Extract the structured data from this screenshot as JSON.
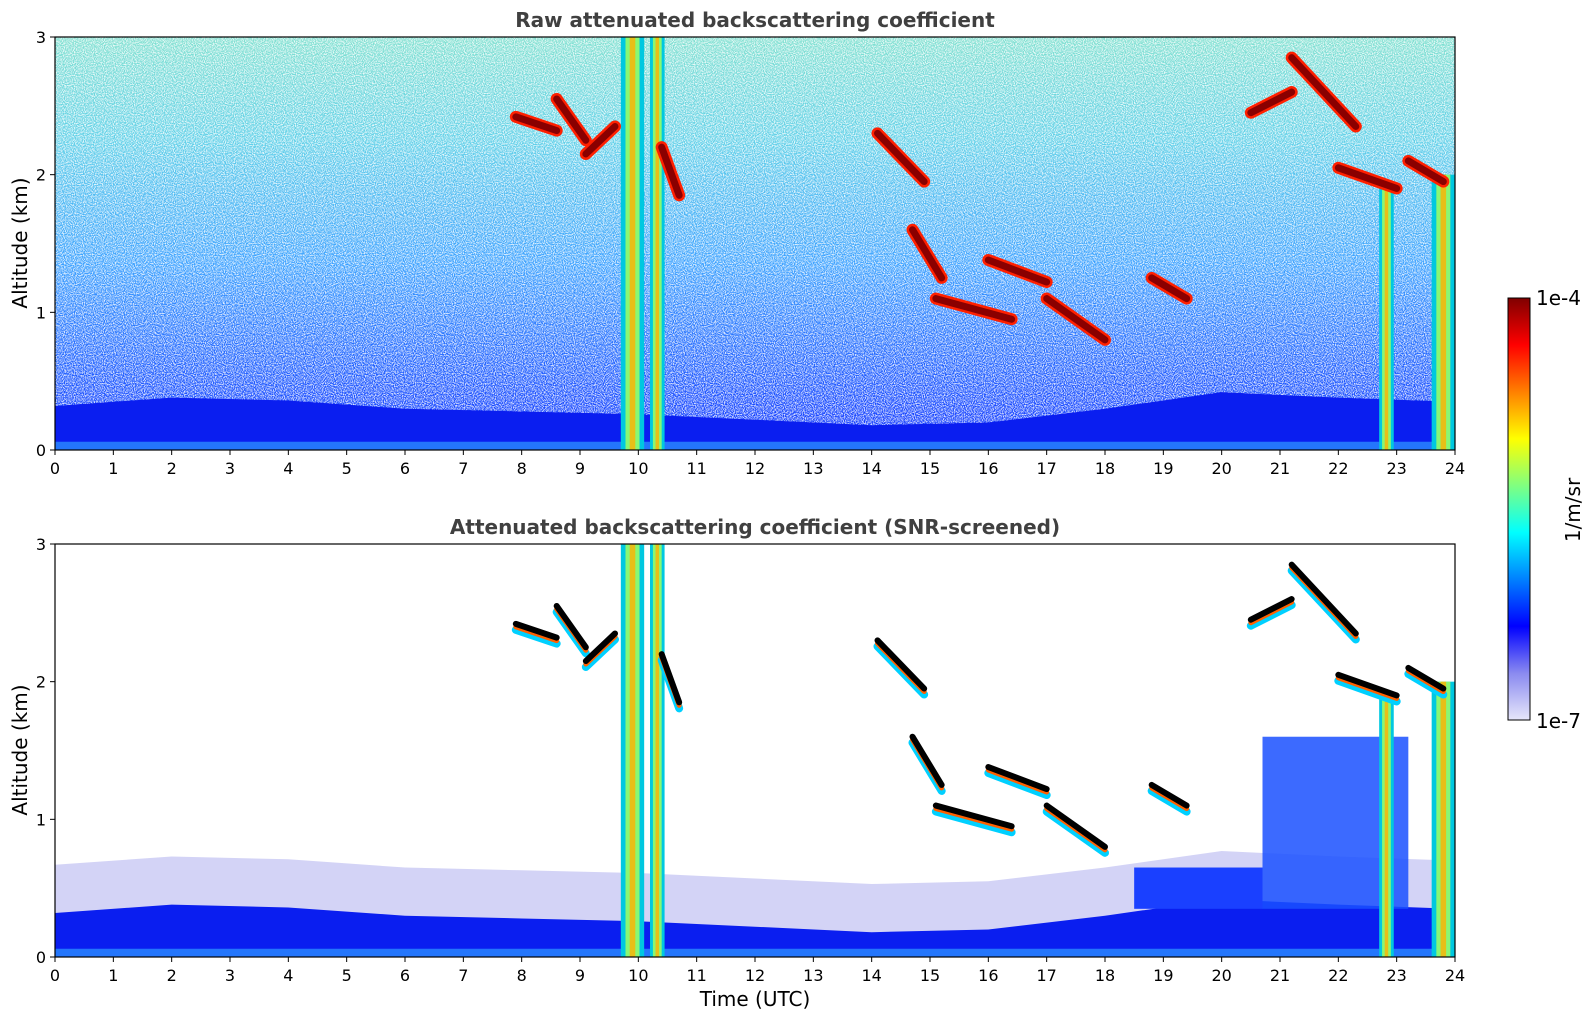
{
  "chart_data": [
    {
      "type": "heatmap",
      "title": "Raw attenuated backscattering coefficient",
      "xlabel": "",
      "ylabel": "Altitude (km)",
      "xlim": [
        0,
        24
      ],
      "ylim": [
        0,
        3
      ],
      "xticks": [
        "0",
        "1",
        "2",
        "3",
        "4",
        "5",
        "6",
        "7",
        "8",
        "9",
        "10",
        "11",
        "12",
        "13",
        "14",
        "15",
        "16",
        "17",
        "18",
        "19",
        "20",
        "21",
        "22",
        "23",
        "24"
      ],
      "yticks": [
        "0",
        "1",
        "2",
        "3"
      ],
      "screened": false,
      "boundary_layer": [
        {
          "t": 0,
          "top": 0.32
        },
        {
          "t": 2,
          "top": 0.38
        },
        {
          "t": 4,
          "top": 0.36
        },
        {
          "t": 6,
          "top": 0.3
        },
        {
          "t": 8,
          "top": 0.28
        },
        {
          "t": 10,
          "top": 0.26
        },
        {
          "t": 12,
          "top": 0.22
        },
        {
          "t": 14,
          "top": 0.18
        },
        {
          "t": 16,
          "top": 0.2
        },
        {
          "t": 18,
          "top": 0.3
        },
        {
          "t": 20,
          "top": 0.42
        },
        {
          "t": 22,
          "top": 0.38
        },
        {
          "t": 24,
          "top": 0.35
        }
      ],
      "cloud_layers": [
        {
          "t": [
            7.9,
            8.6
          ],
          "alt": [
            2.42,
            2.32
          ]
        },
        {
          "t": [
            8.6,
            9.1
          ],
          "alt": [
            2.55,
            2.25
          ]
        },
        {
          "t": [
            9.1,
            9.6
          ],
          "alt": [
            2.15,
            2.35
          ]
        },
        {
          "t": [
            10.4,
            10.7
          ],
          "alt": [
            2.2,
            1.85
          ]
        },
        {
          "t": [
            14.1,
            14.9
          ],
          "alt": [
            2.3,
            1.95
          ]
        },
        {
          "t": [
            14.7,
            15.2
          ],
          "alt": [
            1.6,
            1.25
          ]
        },
        {
          "t": [
            15.1,
            16.4
          ],
          "alt": [
            1.1,
            0.95
          ]
        },
        {
          "t": [
            16.0,
            17.0
          ],
          "alt": [
            1.38,
            1.22
          ]
        },
        {
          "t": [
            17.0,
            18.0
          ],
          "alt": [
            1.1,
            0.8
          ]
        },
        {
          "t": [
            18.8,
            19.4
          ],
          "alt": [
            1.25,
            1.1
          ]
        },
        {
          "t": [
            20.5,
            21.2
          ],
          "alt": [
            2.45,
            2.6
          ]
        },
        {
          "t": [
            21.2,
            22.3
          ],
          "alt": [
            2.85,
            2.35
          ]
        },
        {
          "t": [
            22.0,
            23.0
          ],
          "alt": [
            2.05,
            1.9
          ]
        },
        {
          "t": [
            23.2,
            23.8
          ],
          "alt": [
            2.1,
            1.95
          ]
        }
      ],
      "precipitation_columns": [
        {
          "t": [
            9.7,
            10.1
          ],
          "top": 3.0
        },
        {
          "t": [
            10.2,
            10.45
          ],
          "top": 3.0
        },
        {
          "t": [
            22.7,
            22.95
          ],
          "top": 1.9
        },
        {
          "t": [
            23.6,
            24.0
          ],
          "top": 2.0
        }
      ]
    },
    {
      "type": "heatmap",
      "title": "Attenuated backscattering coefficient (SNR-screened)",
      "xlabel": "Time (UTC)",
      "ylabel": "Altitude (km)",
      "xlim": [
        0,
        24
      ],
      "ylim": [
        0,
        3
      ],
      "xticks": [
        "0",
        "1",
        "2",
        "3",
        "4",
        "5",
        "6",
        "7",
        "8",
        "9",
        "10",
        "11",
        "12",
        "13",
        "14",
        "15",
        "16",
        "17",
        "18",
        "19",
        "20",
        "21",
        "22",
        "23",
        "24"
      ],
      "yticks": [
        "0",
        "1",
        "2",
        "3"
      ],
      "screened": true
    }
  ],
  "colorbar": {
    "label": "1/m/sr",
    "max_label": "1e-4",
    "min_label": "1e-7",
    "scale": "log",
    "range": [
      1e-07,
      0.0001
    ],
    "colors": [
      "#e6e6fa",
      "#8a8af0",
      "#0000ff",
      "#0080ff",
      "#00ffff",
      "#80ff80",
      "#ffff00",
      "#ff8000",
      "#ff0000",
      "#800000"
    ]
  }
}
